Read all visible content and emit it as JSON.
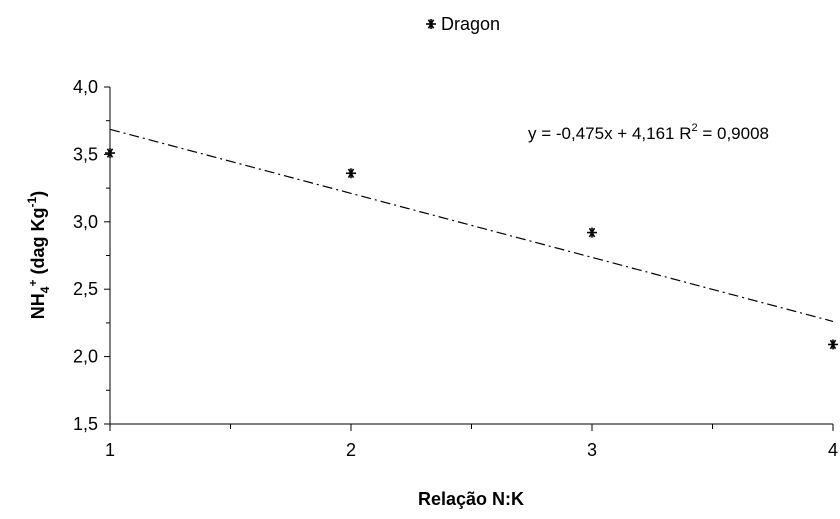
{
  "chart_data": {
    "type": "scatter",
    "title": "",
    "xlabel": "Relação N:K",
    "ylabel": {
      "base": "NH",
      "sub": "4",
      "sup": "+",
      "unit_open": " (dag Kg",
      "unit_sup": "-1",
      "unit_close": ")"
    },
    "xlim": [
      1,
      4
    ],
    "ylim": [
      1.5,
      4.0
    ],
    "x_ticks": [
      1,
      2,
      3,
      4
    ],
    "y_ticks": [
      1.5,
      2.0,
      2.5,
      3.0,
      3.5,
      4.0
    ],
    "x_tick_labels": [
      "1",
      "2",
      "3",
      "4"
    ],
    "y_tick_labels": [
      "1,5",
      "2,0",
      "2,5",
      "3,0",
      "3,5",
      "4,0"
    ],
    "grid": false,
    "legend_position": "top-center",
    "series": [
      {
        "name": "Dragon",
        "marker": "asterisk",
        "color": "#000000",
        "x": [
          1,
          2,
          3,
          4
        ],
        "y": [
          3.51,
          3.36,
          2.92,
          2.09
        ]
      }
    ],
    "trendline": {
      "slope": -0.475,
      "intercept": 4.161,
      "style": "dash-dot",
      "color": "#000000",
      "equation": {
        "main": "y = -0,475x + 4,161  R",
        "sup": "2",
        "tail": " = 0,9008"
      }
    }
  }
}
